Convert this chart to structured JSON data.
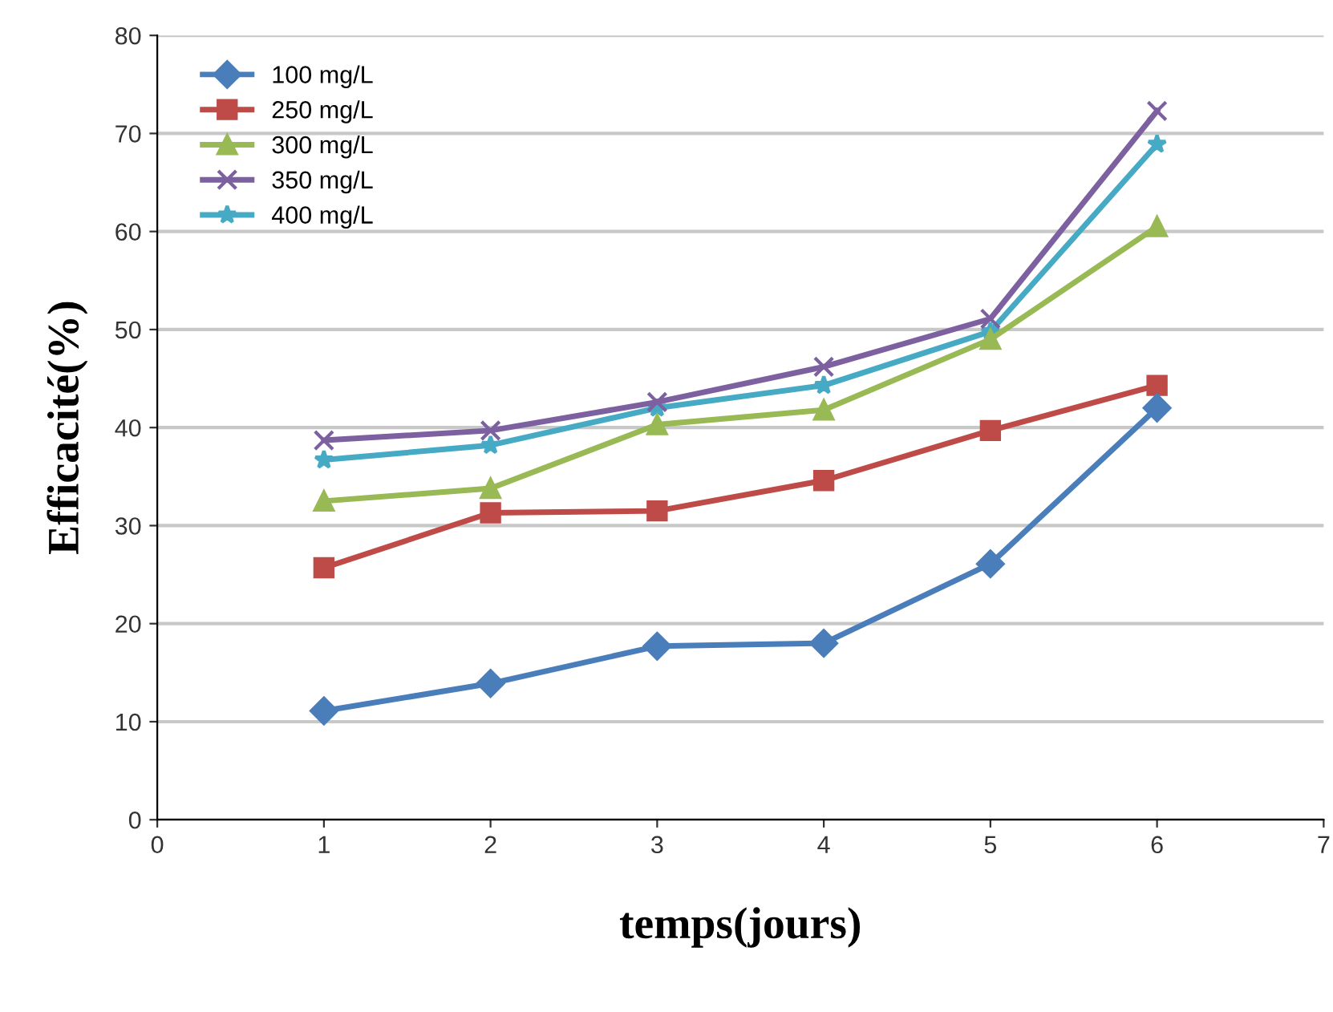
{
  "chart_data": {
    "type": "line",
    "xlabel": "temps(jours)",
    "ylabel": "Efficacité(%)",
    "x": [
      1,
      2,
      3,
      4,
      5,
      6
    ],
    "series": [
      {
        "name": "100 mg/L",
        "color": "#4a7ebb",
        "marker": "diamond",
        "values": [
          11.1,
          13.9,
          17.7,
          18,
          26.1,
          42
        ]
      },
      {
        "name": "250 mg/L",
        "color": "#be4b48",
        "marker": "square",
        "values": [
          25.7,
          31.3,
          31.5,
          34.6,
          39.7,
          44.3
        ]
      },
      {
        "name": "300 mg/L",
        "color": "#98b954",
        "marker": "triangle",
        "values": [
          32.5,
          33.8,
          40.3,
          41.8,
          49,
          60.5
        ]
      },
      {
        "name": "350 mg/L",
        "color": "#7d60a0",
        "marker": "cross",
        "values": [
          38.7,
          39.7,
          42.6,
          46.2,
          51.1,
          72.3
        ]
      },
      {
        "name": "400 mg/L",
        "color": "#46aac5",
        "marker": "star",
        "values": [
          36.7,
          38.2,
          42,
          44.3,
          49.8,
          68.9
        ]
      }
    ],
    "xlim": [
      0,
      7
    ],
    "xticks": [
      0,
      1,
      2,
      3,
      4,
      5,
      6,
      7
    ],
    "ylim": [
      0,
      80
    ],
    "yticks": [
      0,
      10,
      20,
      30,
      40,
      50,
      60,
      70,
      80
    ],
    "grid": "y",
    "legend": "top left",
    "line_style": "solid"
  }
}
